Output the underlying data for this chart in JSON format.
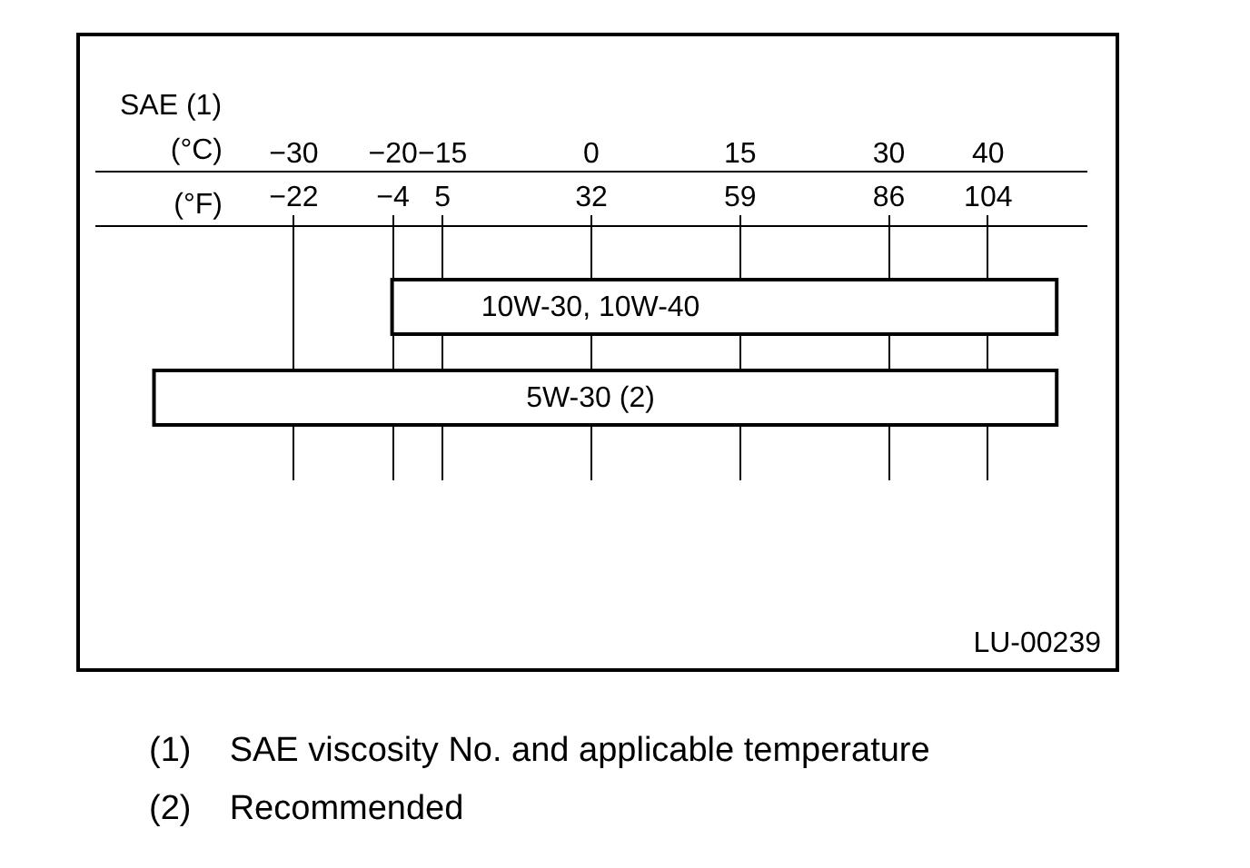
{
  "chart_data": {
    "type": "bar",
    "orientation": "horizontal",
    "title": "SAE (1)",
    "xlabel": "(°C)",
    "x2label": "(°F)",
    "categories": [
      "10W-30, 10W-40",
      "5W-30 (2)"
    ],
    "base": [
      -20,
      -44
    ],
    "values": [
      67,
      91
    ],
    "color": "#ffffff",
    "xlim": [
      -50,
      50
    ],
    "xticks": [
      -30,
      -20,
      -15,
      0,
      15,
      30,
      40
    ],
    "x2lim": [
      -58,
      122
    ],
    "x2ticks": [
      -22,
      -4,
      5,
      32,
      59,
      86,
      104
    ],
    "grid": "x",
    "tick_labels": "x",
    "annotations": [
      "LU-00239",
      "(1)    SAE viscosity No. and applicable temperature",
      "(2)    Recommended"
    ]
  }
}
